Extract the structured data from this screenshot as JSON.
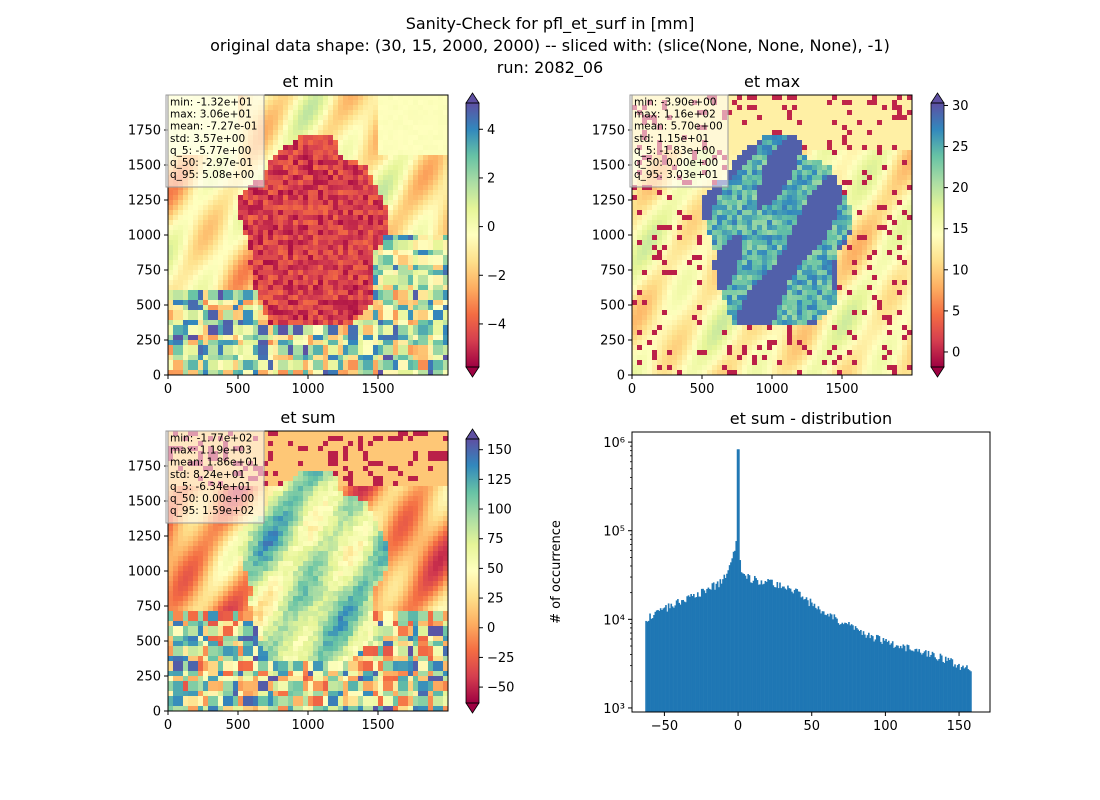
{
  "figure": {
    "title_lines": [
      "Sanity-Check for pfl_et_surf in [mm]",
      "original data shape: (30, 15, 2000, 2000) -- sliced with: (slice(None, None, None), -1)",
      "run: 2082_06"
    ]
  },
  "colors": {
    "spectral": [
      "#9e0142",
      "#d53e4f",
      "#f46d43",
      "#fdae61",
      "#fee08b",
      "#ffffbf",
      "#e6f598",
      "#abdda4",
      "#66c2a5",
      "#3288bd",
      "#5e4fa2"
    ],
    "hist_bar": "#1f77b4"
  },
  "chart_data": [
    {
      "type": "heatmap",
      "title": "et min",
      "xlim": [
        0,
        2000
      ],
      "ylim": [
        0,
        2000
      ],
      "xticks": [
        0,
        500,
        1000,
        1500
      ],
      "yticks": [
        0,
        250,
        500,
        750,
        1000,
        1250,
        1500,
        1750
      ],
      "colorbar": {
        "vmin": -5.77,
        "vmax": 5.08,
        "ticks": [
          -4,
          -2,
          0,
          2,
          4
        ],
        "extend": "both",
        "cmap": "Spectral"
      },
      "stats": [
        "min: -1.32e+01",
        "max: 3.06e+01",
        "mean: -7.27e-01",
        "std: 3.57e+00",
        "q_5: -5.77e+00",
        "q_50: -2.97e-01",
        "q_95: 5.08e+00"
      ]
    },
    {
      "type": "heatmap",
      "title": "et max",
      "xlim": [
        0,
        2000
      ],
      "ylim": [
        0,
        2000
      ],
      "xticks": [
        0,
        500,
        1000,
        1500
      ],
      "yticks": [
        0,
        250,
        500,
        750,
        1000,
        1250,
        1500,
        1750
      ],
      "colorbar": {
        "vmin": -1.83,
        "vmax": 30.3,
        "ticks": [
          0,
          5,
          10,
          15,
          20,
          25,
          30
        ],
        "extend": "both",
        "cmap": "Spectral"
      },
      "stats": [
        "min: -3.90e+00",
        "max: 1.16e+02",
        "mean: 5.70e+00",
        "std: 1.15e+01",
        "q_5: -1.83e+00",
        "q_50: 0.00e+00",
        "q_95: 3.03e+01"
      ]
    },
    {
      "type": "heatmap",
      "title": "et sum",
      "xlim": [
        0,
        2000
      ],
      "ylim": [
        0,
        2000
      ],
      "xticks": [
        0,
        500,
        1000,
        1500
      ],
      "yticks": [
        0,
        250,
        500,
        750,
        1000,
        1250,
        1500,
        1750
      ],
      "colorbar": {
        "vmin": -63.4,
        "vmax": 159,
        "ticks": [
          -50,
          -25,
          0,
          25,
          50,
          75,
          100,
          125,
          150
        ],
        "extend": "both",
        "cmap": "Spectral"
      },
      "stats": [
        "min: -1.77e+02",
        "max: 1.19e+03",
        "mean: 1.86e+01",
        "std: 8.24e+01",
        "q_5: -6.34e+01",
        "q_50: 0.00e+00",
        "q_95: 1.59e+02"
      ]
    },
    {
      "type": "bar",
      "title": "et sum - distribution",
      "ylabel": "# of occurrence",
      "yscale": "log",
      "xlim": [
        -72,
        171
      ],
      "ylim": [
        900,
        1300000
      ],
      "xticks": [
        -50,
        0,
        50,
        100,
        150
      ],
      "yticks": [
        1000,
        10000,
        100000,
        1000000
      ],
      "x": [
        -63,
        -50,
        -40,
        -30,
        -20,
        -12,
        -8,
        -4,
        -2,
        -1,
        0,
        1,
        2,
        5,
        10,
        20,
        30,
        40,
        50,
        60,
        70,
        80,
        90,
        100,
        110,
        120,
        130,
        140,
        150,
        158
      ],
      "values": [
        10000,
        13000,
        16000,
        19000,
        22000,
        26000,
        32000,
        45000,
        70000,
        85000,
        830000,
        58000,
        35000,
        30000,
        28000,
        27000,
        24000,
        20000,
        15000,
        12000,
        9000,
        8000,
        6500,
        5500,
        5000,
        4500,
        4000,
        3600,
        3000,
        2700
      ]
    }
  ]
}
